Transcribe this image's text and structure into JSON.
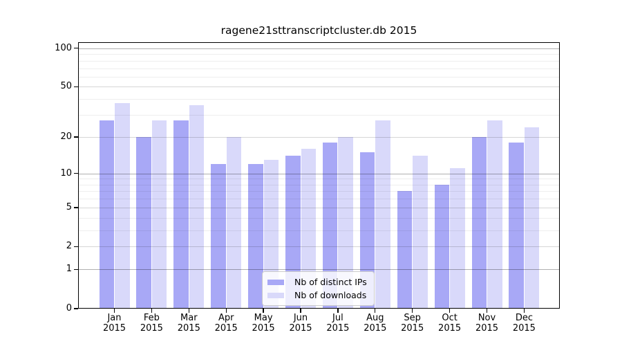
{
  "chart_data": {
    "type": "bar",
    "title": "ragene21sttranscriptcluster.db 2015",
    "categories": [
      "Jan",
      "Feb",
      "Mar",
      "Apr",
      "May",
      "Jun",
      "Jul",
      "Aug",
      "Sep",
      "Oct",
      "Nov",
      "Dec"
    ],
    "year_label": "2015",
    "series": [
      {
        "name": "Nb of distinct IPs",
        "color": "#a8a8f6",
        "values": [
          27,
          20,
          27,
          12,
          12,
          14,
          18,
          15,
          7,
          8,
          20,
          18
        ]
      },
      {
        "name": "Nb of downloads",
        "color": "#d9d9fa",
        "values": [
          37,
          27,
          36,
          20,
          13,
          16,
          20,
          27,
          14,
          11,
          27,
          24
        ]
      }
    ],
    "xlabel": "",
    "ylabel": "",
    "yscale": "log1p",
    "yticks": [
      0,
      1,
      2,
      5,
      10,
      20,
      50,
      100
    ],
    "minor_yticks": [
      3,
      4,
      6,
      7,
      8,
      9,
      30,
      40,
      60,
      70,
      80,
      90
    ],
    "ylim": [
      0,
      112
    ],
    "grid": "horizontal",
    "legend_position": "bottom-center"
  }
}
